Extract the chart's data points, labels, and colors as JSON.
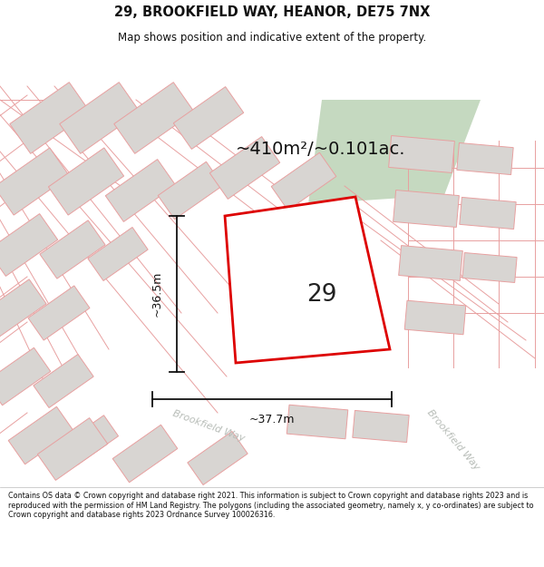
{
  "title": "29, BROOKFIELD WAY, HEANOR, DE75 7NX",
  "subtitle": "Map shows position and indicative extent of the property.",
  "area_label": "~410m²/~0.101ac.",
  "width_label": "~37.7m",
  "height_label": "~36.5m",
  "plot_number": "29",
  "footer_text": "Contains OS data © Crown copyright and database right 2021. This information is subject to Crown copyright and database rights 2023 and is reproduced with the permission of HM Land Registry. The polygons (including the associated geometry, namely x, y co-ordinates) are subject to Crown copyright and database rights 2023 Ordnance Survey 100026316.",
  "map_bg": "#f7f5f3",
  "plot_outline_color": "#dd0000",
  "building_fill": "#d8d5d2",
  "building_outline": "#e8a0a0",
  "road_outline": "#e8a0a0",
  "green_color": "#c5d9c0",
  "street_label_color": "#b8bdb8",
  "annotation_color": "#111111",
  "white": "#ffffff"
}
